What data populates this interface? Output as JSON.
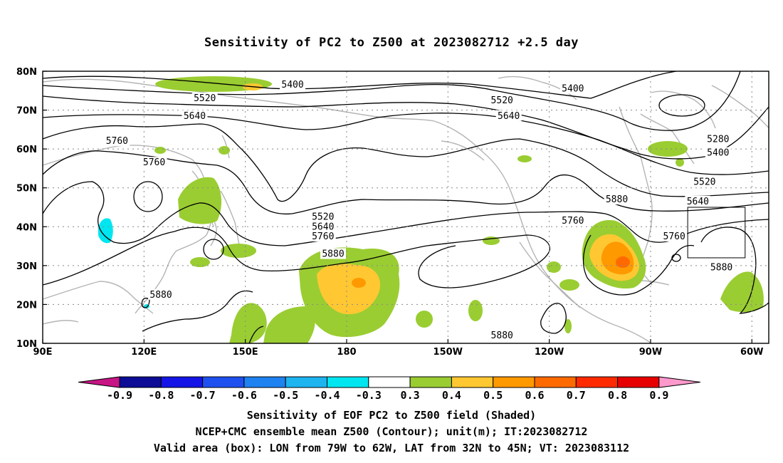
{
  "title": "Sensitivity of PC2 to Z500 at 2023082712 +2.5 day",
  "map": {
    "lon_range": [
      90,
      305
    ],
    "lat_range": [
      10,
      80
    ],
    "lon_ticks": [
      {
        "lon": 90,
        "label": "90E"
      },
      {
        "lon": 120,
        "label": "120E"
      },
      {
        "lon": 150,
        "label": "150E"
      },
      {
        "lon": 180,
        "label": "180"
      },
      {
        "lon": 210,
        "label": "150W"
      },
      {
        "lon": 240,
        "label": "120W"
      },
      {
        "lon": 270,
        "label": "90W"
      },
      {
        "lon": 300,
        "label": "60W"
      }
    ],
    "lat_ticks": [
      {
        "lat": 10,
        "label": "10N"
      },
      {
        "lat": 20,
        "label": "20N"
      },
      {
        "lat": 30,
        "label": "30N"
      },
      {
        "lat": 40,
        "label": "40N"
      },
      {
        "lat": 50,
        "label": "50N"
      },
      {
        "lat": 60,
        "label": "60N"
      },
      {
        "lat": 70,
        "label": "70N"
      },
      {
        "lat": 80,
        "label": "80N"
      }
    ],
    "grid": "dotted",
    "valid_box": {
      "lon_west": 281,
      "lon_east": 298,
      "lat_south": 32,
      "lat_north": 45
    },
    "contour_labels": [
      {
        "text": "5400",
        "lon": 164,
        "lat": 76.5
      },
      {
        "text": "5400",
        "lon": 247,
        "lat": 75.5
      },
      {
        "text": "5520",
        "lon": 138,
        "lat": 73
      },
      {
        "text": "5520",
        "lon": 226,
        "lat": 72.5
      },
      {
        "text": "5640",
        "lon": 135,
        "lat": 68.5
      },
      {
        "text": "5640",
        "lon": 228,
        "lat": 68.5
      },
      {
        "text": "5760",
        "lon": 112,
        "lat": 62
      },
      {
        "text": "5760",
        "lon": 123,
        "lat": 56.5
      },
      {
        "text": "5280",
        "lon": 290,
        "lat": 62.5
      },
      {
        "text": "5400",
        "lon": 290,
        "lat": 59
      },
      {
        "text": "5520",
        "lon": 286,
        "lat": 51.5
      },
      {
        "text": "5640",
        "lon": 284,
        "lat": 46.5
      },
      {
        "text": "5880",
        "lon": 260,
        "lat": 47
      },
      {
        "text": "5760",
        "lon": 247,
        "lat": 41.5
      },
      {
        "text": "5520",
        "lon": 173,
        "lat": 42.5
      },
      {
        "text": "5640",
        "lon": 173,
        "lat": 40
      },
      {
        "text": "5760",
        "lon": 173,
        "lat": 37.5
      },
      {
        "text": "5880",
        "lon": 176,
        "lat": 33
      },
      {
        "text": "5880",
        "lon": 125,
        "lat": 22.5
      },
      {
        "text": "5760",
        "lon": 277,
        "lat": 37.5
      },
      {
        "text": "5880",
        "lon": 291,
        "lat": 29.5
      },
      {
        "text": "5880",
        "lon": 226,
        "lat": 12
      }
    ]
  },
  "colorbar": {
    "labels": [
      "-0.9",
      "-0.8",
      "-0.7",
      "-0.6",
      "-0.5",
      "-0.4",
      "-0.3",
      "0.3",
      "0.4",
      "0.5",
      "0.6",
      "0.7",
      "0.8",
      "0.9"
    ],
    "colors": [
      "#c71585",
      "#0c0c96",
      "#1414e6",
      "#1e50f0",
      "#1e82f0",
      "#1eb4f0",
      "#00e6f0",
      "#ffffff",
      "#9acd32",
      "#ffc832",
      "#ff9900",
      "#ff6a00",
      "#ff2a00",
      "#e60000",
      "#ff99cc"
    ]
  },
  "captions": {
    "line1": "Sensitivity of EOF PC2 to Z500 field (Shaded)",
    "line2": "NCEP+CMC ensemble mean Z500 (Contour); unit(m); IT:2023082712",
    "line3": "Valid area (box): LON from 79W to 62W, LAT from 32N to 45N; VT: 2023083112"
  }
}
